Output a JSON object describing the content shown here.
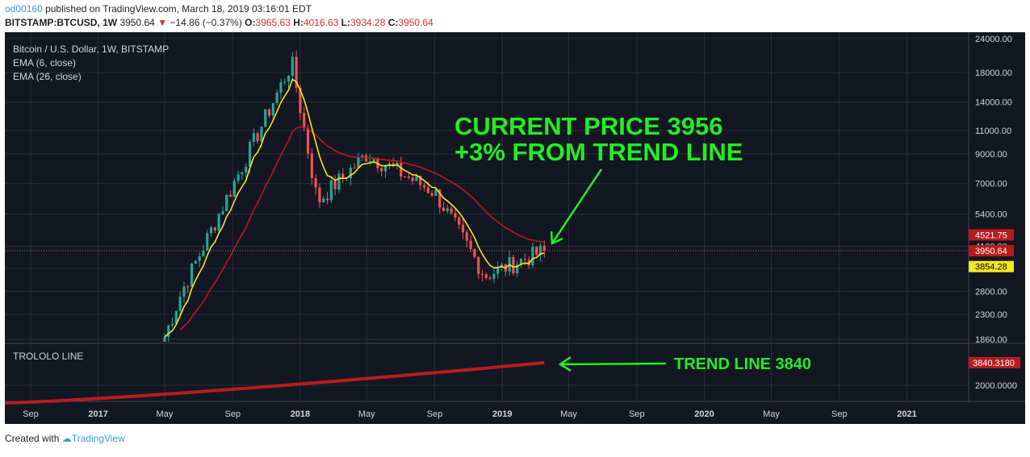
{
  "header": {
    "user": "od00160",
    "published_text": "published on TradingView.com, March 18, 2019 03:16:01 EDT",
    "symbol": "BITSTAMP:BTCUSD, 1W",
    "last": "3950.64",
    "change": "−14.86 (−0.37%)",
    "open_label": "O:",
    "open": "3965.63",
    "high_label": "H:",
    "high": "4016.63",
    "low_label": "L:",
    "low": "3934.28",
    "close_label": "C:",
    "close": "3950.64"
  },
  "legend": {
    "title": "Bitcoin / U.S. Dollar, 1W, BITSTAMP",
    "ema_short": "EMA (6, close)",
    "ema_long": "EMA (26, close)",
    "sub_pane": "TROLOLO LINE"
  },
  "annotations": {
    "current_line1": "CURRENT PRICE 3956",
    "current_line2": "+3% FROM TREND LINE",
    "trend": "TREND LINE 3840"
  },
  "price_badges": {
    "ema_long": "4521.75",
    "last": "3950.64",
    "ema_short": "3854.28",
    "trend": "3840.3180"
  },
  "footer": {
    "created_with": "Created with",
    "brand": "TradingView"
  },
  "colors": {
    "background": "#131722",
    "up": "#26a69a",
    "down": "#ef5350",
    "ema_short": "#f5e61f",
    "ema_long": "#b71c1c",
    "trend_line": "#b71c1c",
    "annotation": "#22ee22"
  },
  "chart_data": {
    "type": "candlestick",
    "y_scale": "log",
    "y_ticks": [
      1860,
      2300,
      2800,
      3400,
      4100,
      5400,
      7000,
      9000,
      11000,
      14000,
      18000,
      24000
    ],
    "y_tick_labels": [
      "1860.00",
      "2300.00",
      "2800.00",
      "3400.00",
      "4100.00",
      "5400.00",
      "7000.00",
      "9000.00",
      "11000.00",
      "14000.00",
      "18000.00",
      "24000.00"
    ],
    "x_labels": [
      "Sep",
      "2017",
      "May",
      "Sep",
      "2018",
      "May",
      "Sep",
      "2019",
      "May",
      "Sep",
      "2020",
      "May",
      "Sep",
      "2021"
    ],
    "trend_ticks": [
      "2000.0000"
    ],
    "key_points": [
      {
        "date": "2017-05",
        "low": 1750,
        "high": 2200
      },
      {
        "date": "2017-06",
        "close": 2800
      },
      {
        "date": "2017-12-17",
        "high": 19600
      },
      {
        "date": "2018-02",
        "low": 6000
      },
      {
        "date": "2018-05",
        "close": 9000
      },
      {
        "date": "2018-09",
        "close": 6500
      },
      {
        "date": "2018-12",
        "low": 3200
      },
      {
        "date": "2019-03-18",
        "open": 3965.63,
        "high": 4016.63,
        "low": 3934.28,
        "close": 3950.64
      }
    ],
    "series": [
      {
        "name": "EMA (6, close)",
        "last": 3854.28
      },
      {
        "name": "EMA (26, close)",
        "last": 4521.75
      },
      {
        "name": "TROLOLO LINE",
        "last": 3840.318
      }
    ]
  }
}
